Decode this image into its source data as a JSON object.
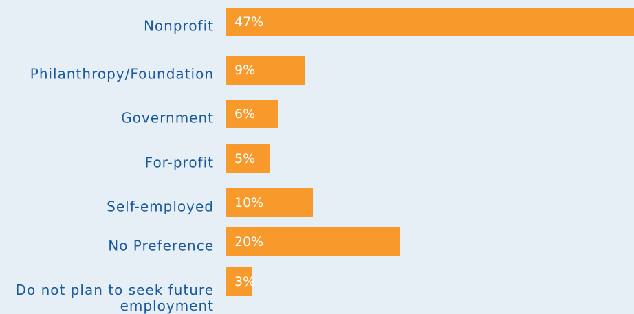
{
  "chart_data": {
    "type": "bar",
    "orientation": "horizontal",
    "categories": [
      "Nonprofit",
      "Philanthropy/Foundation",
      "Government",
      "For-profit",
      "Self-employed",
      "No Preference",
      "Do not plan to seek future employment"
    ],
    "values": [
      47,
      9,
      6,
      5,
      10,
      20,
      3
    ],
    "value_labels": [
      "47%",
      "9%",
      "6%",
      "5%",
      "10%",
      "20%",
      "3%"
    ],
    "color": "#f89a2b",
    "xlim": [
      0,
      47
    ]
  }
}
